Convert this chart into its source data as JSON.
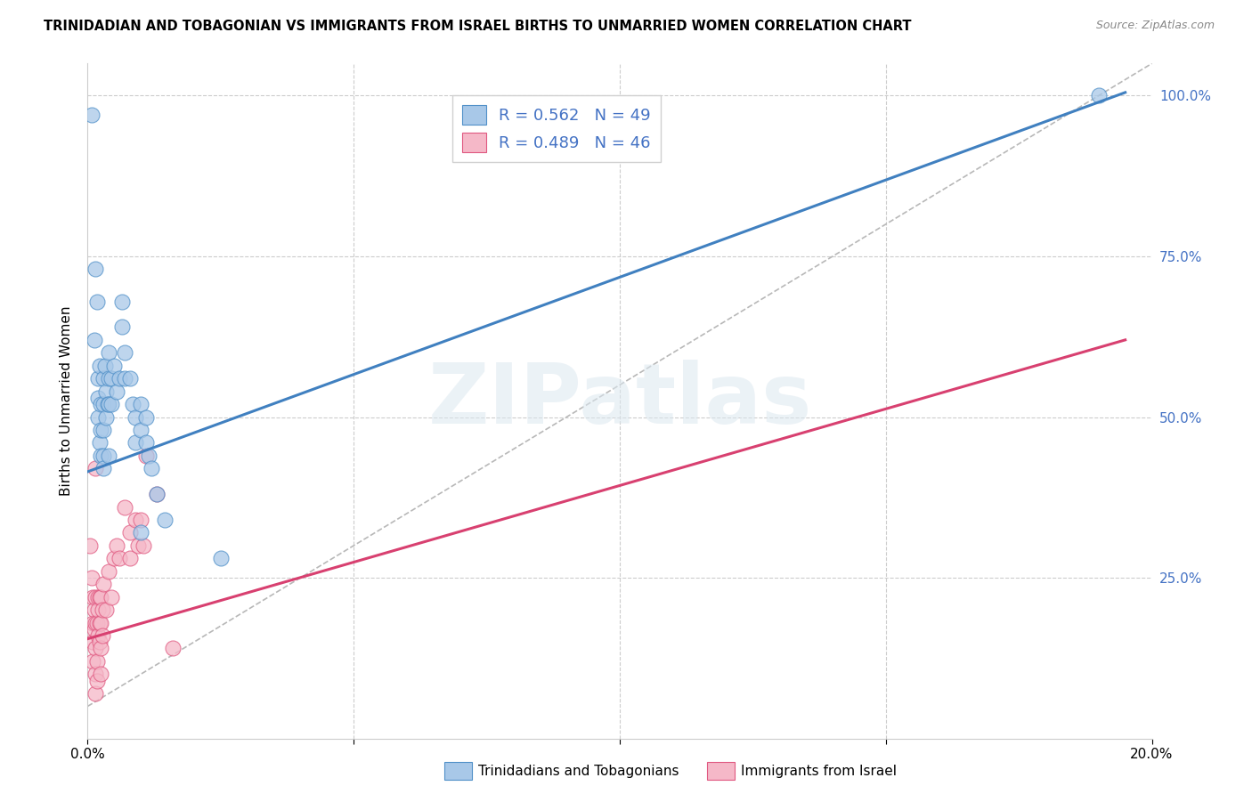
{
  "title": "TRINIDADIAN AND TOBAGONIAN VS IMMIGRANTS FROM ISRAEL BIRTHS TO UNMARRIED WOMEN CORRELATION CHART",
  "source": "Source: ZipAtlas.com",
  "ylabel": "Births to Unmarried Women",
  "xlim": [
    0.0,
    0.2
  ],
  "ylim": [
    0.0,
    1.05
  ],
  "ytick_values": [
    0.0,
    0.25,
    0.5,
    0.75,
    1.0
  ],
  "ytick_labels": [
    "",
    "25.0%",
    "50.0%",
    "75.0%",
    "100.0%"
  ],
  "xtick_values": [
    0.0,
    0.05,
    0.1,
    0.15,
    0.2
  ],
  "xtick_labels": [
    "0.0%",
    "",
    "",
    "",
    "20.0%"
  ],
  "legend_label_blue": "Trinidadians and Tobagonians",
  "legend_label_pink": "Immigrants from Israel",
  "watermark": "ZIPatlas",
  "blue_color": "#a8c8e8",
  "pink_color": "#f5b8c8",
  "blue_edge_color": "#5090c8",
  "pink_edge_color": "#e05880",
  "blue_line_color": "#4080c0",
  "pink_line_color": "#d84070",
  "dashed_line_color": "#b8b8b8",
  "right_tick_color": "#4472c4",
  "blue_line_x0": 0.0,
  "blue_line_y0": 0.415,
  "blue_line_x1": 0.195,
  "blue_line_y1": 1.005,
  "pink_line_x0": 0.0,
  "pink_line_y0": 0.155,
  "pink_line_x1": 0.195,
  "pink_line_y1": 0.62,
  "blue_scatter": [
    [
      0.0008,
      0.97
    ],
    [
      0.0012,
      0.62
    ],
    [
      0.0015,
      0.73
    ],
    [
      0.0018,
      0.68
    ],
    [
      0.002,
      0.56
    ],
    [
      0.002,
      0.53
    ],
    [
      0.002,
      0.5
    ],
    [
      0.0022,
      0.58
    ],
    [
      0.0022,
      0.46
    ],
    [
      0.0025,
      0.52
    ],
    [
      0.0025,
      0.48
    ],
    [
      0.0025,
      0.44
    ],
    [
      0.003,
      0.56
    ],
    [
      0.003,
      0.52
    ],
    [
      0.003,
      0.48
    ],
    [
      0.003,
      0.44
    ],
    [
      0.003,
      0.42
    ],
    [
      0.0032,
      0.58
    ],
    [
      0.0035,
      0.54
    ],
    [
      0.0035,
      0.5
    ],
    [
      0.0038,
      0.52
    ],
    [
      0.004,
      0.6
    ],
    [
      0.004,
      0.56
    ],
    [
      0.004,
      0.52
    ],
    [
      0.004,
      0.44
    ],
    [
      0.0045,
      0.56
    ],
    [
      0.0045,
      0.52
    ],
    [
      0.005,
      0.58
    ],
    [
      0.0055,
      0.54
    ],
    [
      0.006,
      0.56
    ],
    [
      0.0065,
      0.68
    ],
    [
      0.0065,
      0.64
    ],
    [
      0.007,
      0.6
    ],
    [
      0.007,
      0.56
    ],
    [
      0.008,
      0.56
    ],
    [
      0.0085,
      0.52
    ],
    [
      0.009,
      0.5
    ],
    [
      0.009,
      0.46
    ],
    [
      0.01,
      0.52
    ],
    [
      0.01,
      0.48
    ],
    [
      0.01,
      0.32
    ],
    [
      0.011,
      0.5
    ],
    [
      0.011,
      0.46
    ],
    [
      0.0115,
      0.44
    ],
    [
      0.012,
      0.42
    ],
    [
      0.013,
      0.38
    ],
    [
      0.0145,
      0.34
    ],
    [
      0.025,
      0.28
    ],
    [
      0.19,
      1.0
    ]
  ],
  "pink_scatter": [
    [
      0.0005,
      0.3
    ],
    [
      0.0008,
      0.25
    ],
    [
      0.001,
      0.22
    ],
    [
      0.001,
      0.18
    ],
    [
      0.001,
      0.15
    ],
    [
      0.001,
      0.12
    ],
    [
      0.0012,
      0.2
    ],
    [
      0.0012,
      0.17
    ],
    [
      0.0015,
      0.42
    ],
    [
      0.0015,
      0.22
    ],
    [
      0.0015,
      0.18
    ],
    [
      0.0015,
      0.14
    ],
    [
      0.0015,
      0.1
    ],
    [
      0.0015,
      0.07
    ],
    [
      0.0018,
      0.18
    ],
    [
      0.0018,
      0.12
    ],
    [
      0.0018,
      0.09
    ],
    [
      0.002,
      0.22
    ],
    [
      0.002,
      0.2
    ],
    [
      0.002,
      0.16
    ],
    [
      0.0022,
      0.22
    ],
    [
      0.0022,
      0.18
    ],
    [
      0.0022,
      0.15
    ],
    [
      0.0025,
      0.22
    ],
    [
      0.0025,
      0.18
    ],
    [
      0.0025,
      0.14
    ],
    [
      0.0025,
      0.1
    ],
    [
      0.0028,
      0.2
    ],
    [
      0.0028,
      0.16
    ],
    [
      0.003,
      0.24
    ],
    [
      0.0035,
      0.2
    ],
    [
      0.004,
      0.26
    ],
    [
      0.0045,
      0.22
    ],
    [
      0.005,
      0.28
    ],
    [
      0.0055,
      0.3
    ],
    [
      0.006,
      0.28
    ],
    [
      0.007,
      0.36
    ],
    [
      0.008,
      0.32
    ],
    [
      0.008,
      0.28
    ],
    [
      0.009,
      0.34
    ],
    [
      0.0095,
      0.3
    ],
    [
      0.01,
      0.34
    ],
    [
      0.0105,
      0.3
    ],
    [
      0.011,
      0.44
    ],
    [
      0.013,
      0.38
    ],
    [
      0.016,
      0.14
    ]
  ]
}
